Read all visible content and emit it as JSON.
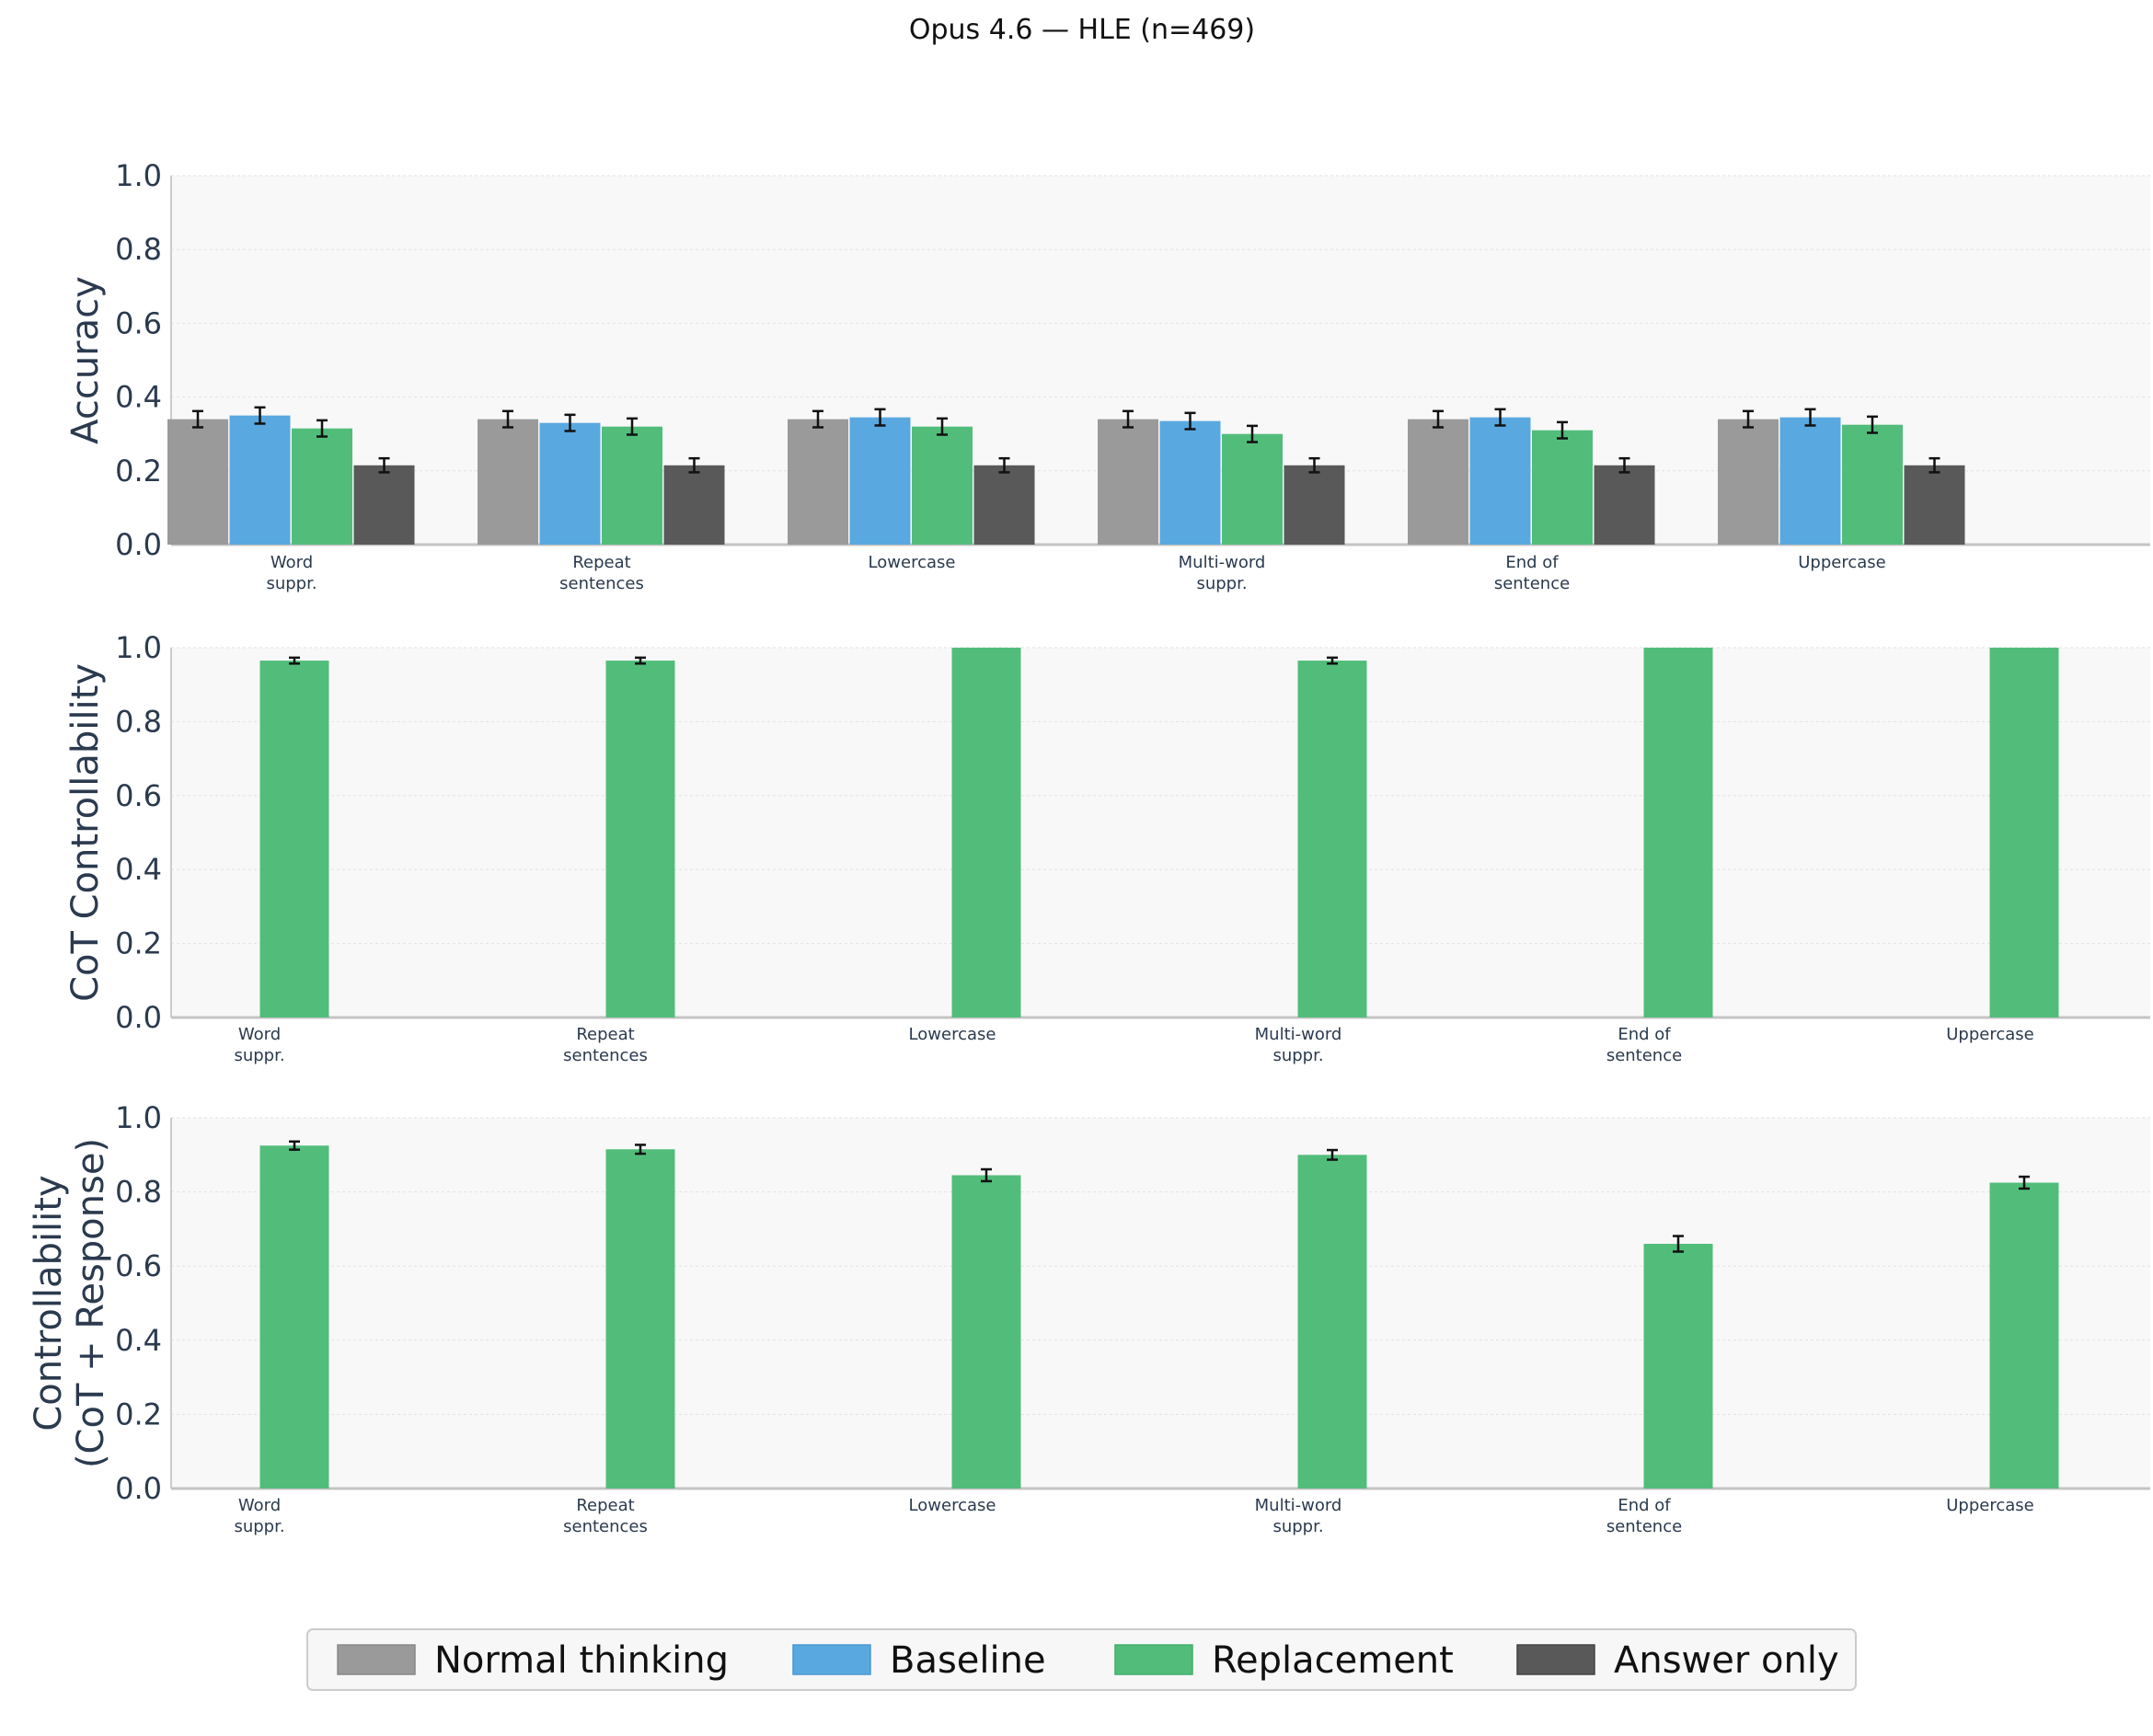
{
  "title": "Opus 4.6 — HLE (n=469)",
  "legend": [
    {
      "label": "Normal thinking",
      "color": "#9a9a9a"
    },
    {
      "label": "Baseline",
      "color": "#5aa8e0"
    },
    {
      "label": "Replacement",
      "color": "#52bd7b"
    },
    {
      "label": "Answer only",
      "color": "#595959"
    }
  ],
  "chart_data": [
    {
      "type": "bar",
      "ylabel": "Accuracy",
      "ylim": [
        0,
        1.0
      ],
      "yticks": [
        "0.0",
        "0.2",
        "0.4",
        "0.6",
        "0.8",
        "1.0"
      ],
      "categories": [
        "Word\nsuppr.",
        "Repeat\nsentences",
        "Lowercase",
        "Multi-word\nsuppr.",
        "End of\nsentence",
        "Uppercase"
      ],
      "series": [
        {
          "name": "Normal thinking",
          "color": "#9a9a9a",
          "values": [
            0.34,
            0.34,
            0.34,
            0.34,
            0.34,
            0.34
          ],
          "errors": [
            0.022,
            0.022,
            0.022,
            0.022,
            0.022,
            0.022
          ]
        },
        {
          "name": "Baseline",
          "color": "#5aa8e0",
          "values": [
            0.35,
            0.33,
            0.345,
            0.335,
            0.345,
            0.345
          ],
          "errors": [
            0.022,
            0.022,
            0.022,
            0.022,
            0.022,
            0.022
          ]
        },
        {
          "name": "Replacement",
          "color": "#52bd7b",
          "values": [
            0.315,
            0.32,
            0.32,
            0.3,
            0.31,
            0.325
          ],
          "errors": [
            0.022,
            0.022,
            0.022,
            0.022,
            0.022,
            0.022
          ]
        },
        {
          "name": "Answer only",
          "color": "#595959",
          "values": [
            0.215,
            0.215,
            0.215,
            0.215,
            0.215,
            0.215
          ],
          "errors": [
            0.019,
            0.019,
            0.019,
            0.019,
            0.019,
            0.019
          ]
        }
      ],
      "grid": true
    },
    {
      "type": "bar",
      "ylabel": "CoT Controllability",
      "ylim": [
        0,
        1.0
      ],
      "yticks": [
        "0.0",
        "0.2",
        "0.4",
        "0.6",
        "0.8",
        "1.0"
      ],
      "categories": [
        "Word\nsuppr.",
        "Repeat\nsentences",
        "Lowercase",
        "Multi-word\nsuppr.",
        "End of\nsentence",
        "Uppercase"
      ],
      "series": [
        {
          "name": "Replacement",
          "color": "#52bd7b",
          "values": [
            0.965,
            0.965,
            1.0,
            0.965,
            1.0,
            1.0
          ],
          "errors": [
            0.008,
            0.008,
            0,
            0.008,
            0,
            0
          ]
        }
      ],
      "grid": true
    },
    {
      "type": "bar",
      "ylabel": "Controllability\n(CoT + Response)",
      "ylim": [
        0,
        1.0
      ],
      "yticks": [
        "0.0",
        "0.2",
        "0.4",
        "0.6",
        "0.8",
        "1.0"
      ],
      "categories": [
        "Word\nsuppr.",
        "Repeat\nsentences",
        "Lowercase",
        "Multi-word\nsuppr.",
        "End of\nsentence",
        "Uppercase"
      ],
      "series": [
        {
          "name": "Replacement",
          "color": "#52bd7b",
          "values": [
            0.925,
            0.915,
            0.845,
            0.9,
            0.66,
            0.825
          ],
          "errors": [
            0.011,
            0.012,
            0.016,
            0.013,
            0.021,
            0.016
          ]
        }
      ],
      "grid": true
    }
  ]
}
